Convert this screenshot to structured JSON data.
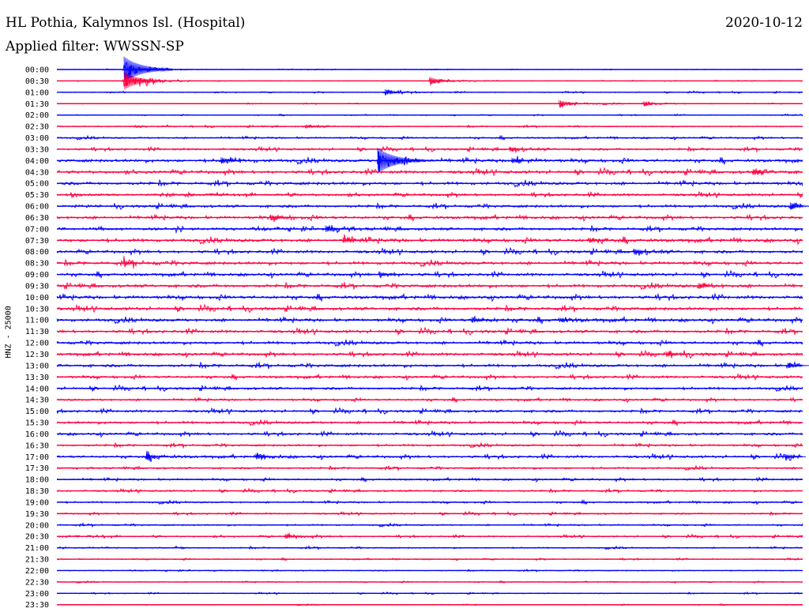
{
  "header": {
    "station": "HL Pothia, Kalymnos Isl. (Hospital)",
    "date": "2020-10-12",
    "filter": "Applied filter: WWSSN-SP",
    "channel_label": "HNZ - 25000"
  },
  "colors": {
    "even_row": "#0000ff",
    "odd_row": "#ff0040"
  },
  "chart_data": {
    "type": "line",
    "title": "HL Pothia, Kalymnos Isl. (Hospital)",
    "subtitle": "Applied filter: WWSSN-SP",
    "date": "2020-10-12",
    "ylabel": "HNZ - 25000",
    "row_labels": [
      "00:00",
      "00:30",
      "01:00",
      "01:30",
      "02:00",
      "02:30",
      "03:00",
      "03:30",
      "04:00",
      "04:30",
      "05:00",
      "05:30",
      "06:00",
      "06:30",
      "07:00",
      "07:30",
      "08:00",
      "08:30",
      "09:00",
      "09:30",
      "10:00",
      "10:30",
      "11:00",
      "11:30",
      "12:00",
      "12:30",
      "13:00",
      "13:30",
      "14:00",
      "14:30",
      "15:00",
      "15:30",
      "16:00",
      "16:30",
      "17:00",
      "17:30",
      "18:00",
      "18:30",
      "19:00",
      "19:30",
      "20:00",
      "20:30",
      "21:00",
      "21:30",
      "22:00",
      "22:30",
      "23:00",
      "23:30"
    ],
    "row_duration_min": 30,
    "noise_level": [
      0.3,
      0.3,
      0.5,
      0.4,
      0.45,
      0.6,
      0.9,
      1.1,
      1.6,
      1.6,
      1.6,
      1.3,
      1.4,
      1.5,
      1.5,
      1.7,
      1.5,
      1.6,
      1.5,
      1.6,
      1.7,
      1.6,
      1.6,
      1.5,
      1.5,
      1.4,
      1.5,
      1.3,
      1.3,
      1.1,
      1.3,
      1.3,
      1.3,
      1.1,
      1.3,
      1.0,
      1.0,
      0.9,
      0.9,
      0.8,
      0.8,
      0.8,
      0.7,
      0.6,
      0.5,
      0.5,
      0.5,
      0.4
    ],
    "events": [
      {
        "row": 0,
        "minute": 2.7,
        "amplitude": 4.5
      },
      {
        "row": 1,
        "minute": 2.7,
        "amplitude": 3.2
      },
      {
        "row": 1,
        "minute": 3.4,
        "amplitude": 1.0
      },
      {
        "row": 1,
        "minute": 15.0,
        "amplitude": 1.4
      },
      {
        "row": 2,
        "minute": 13.2,
        "amplitude": 1.0
      },
      {
        "row": 3,
        "minute": 20.2,
        "amplitude": 1.3
      },
      {
        "row": 3,
        "minute": 23.6,
        "amplitude": 0.8
      },
      {
        "row": 5,
        "minute": 10.0,
        "amplitude": 0.6
      },
      {
        "row": 7,
        "minute": 18.2,
        "amplitude": 0.9
      },
      {
        "row": 8,
        "minute": 12.9,
        "amplitude": 4.5
      },
      {
        "row": 8,
        "minute": 6.6,
        "amplitude": 1.2
      },
      {
        "row": 8,
        "minute": 18.3,
        "amplitude": 1.0
      },
      {
        "row": 9,
        "minute": 28.0,
        "amplitude": 1.0
      },
      {
        "row": 12,
        "minute": 29.5,
        "amplitude": 1.3
      },
      {
        "row": 13,
        "minute": 8.6,
        "amplitude": 1.0
      },
      {
        "row": 14,
        "minute": 10.8,
        "amplitude": 1.2
      },
      {
        "row": 15,
        "minute": 11.5,
        "amplitude": 1.0
      },
      {
        "row": 15,
        "minute": 21.4,
        "amplitude": 0.9
      },
      {
        "row": 16,
        "minute": 23.2,
        "amplitude": 1.1
      },
      {
        "row": 17,
        "minute": 2.7,
        "amplitude": 1.0
      },
      {
        "row": 18,
        "minute": 13.0,
        "amplitude": 0.8
      },
      {
        "row": 19,
        "minute": 25.8,
        "amplitude": 1.0
      },
      {
        "row": 22,
        "minute": 16.7,
        "amplitude": 1.0
      },
      {
        "row": 22,
        "minute": 20.2,
        "amplitude": 0.8
      },
      {
        "row": 25,
        "minute": 24.5,
        "amplitude": 1.0
      },
      {
        "row": 26,
        "minute": 29.4,
        "amplitude": 1.0
      },
      {
        "row": 34,
        "minute": 3.6,
        "amplitude": 1.1
      },
      {
        "row": 34,
        "minute": 8.0,
        "amplitude": 1.0
      },
      {
        "row": 34,
        "minute": 29.3,
        "amplitude": 0.9
      },
      {
        "row": 41,
        "minute": 9.2,
        "amplitude": 0.8
      }
    ]
  }
}
